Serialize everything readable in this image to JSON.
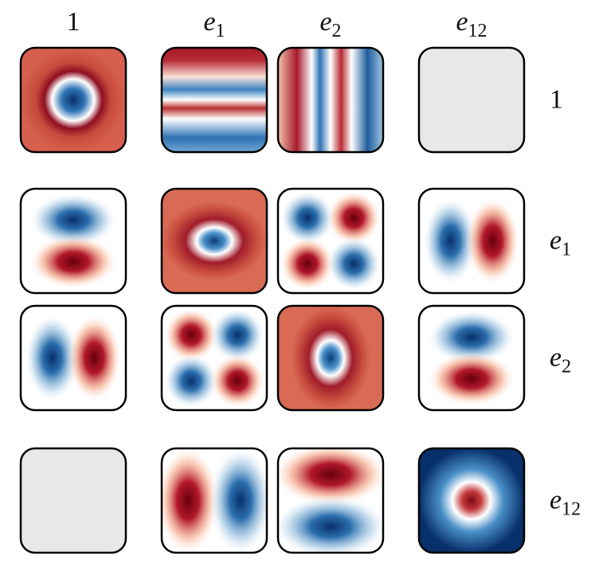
{
  "column_labels": [
    {
      "text": "1"
    },
    {
      "text": "e",
      "sub": "1"
    },
    {
      "text": "e",
      "sub": "2"
    },
    {
      "text": "e",
      "sub": "12"
    }
  ],
  "row_labels": [
    {
      "text": "1"
    },
    {
      "text": "e",
      "sub": "1"
    },
    {
      "text": "e",
      "sub": "2"
    },
    {
      "text": "e",
      "sub": "12"
    }
  ]
}
